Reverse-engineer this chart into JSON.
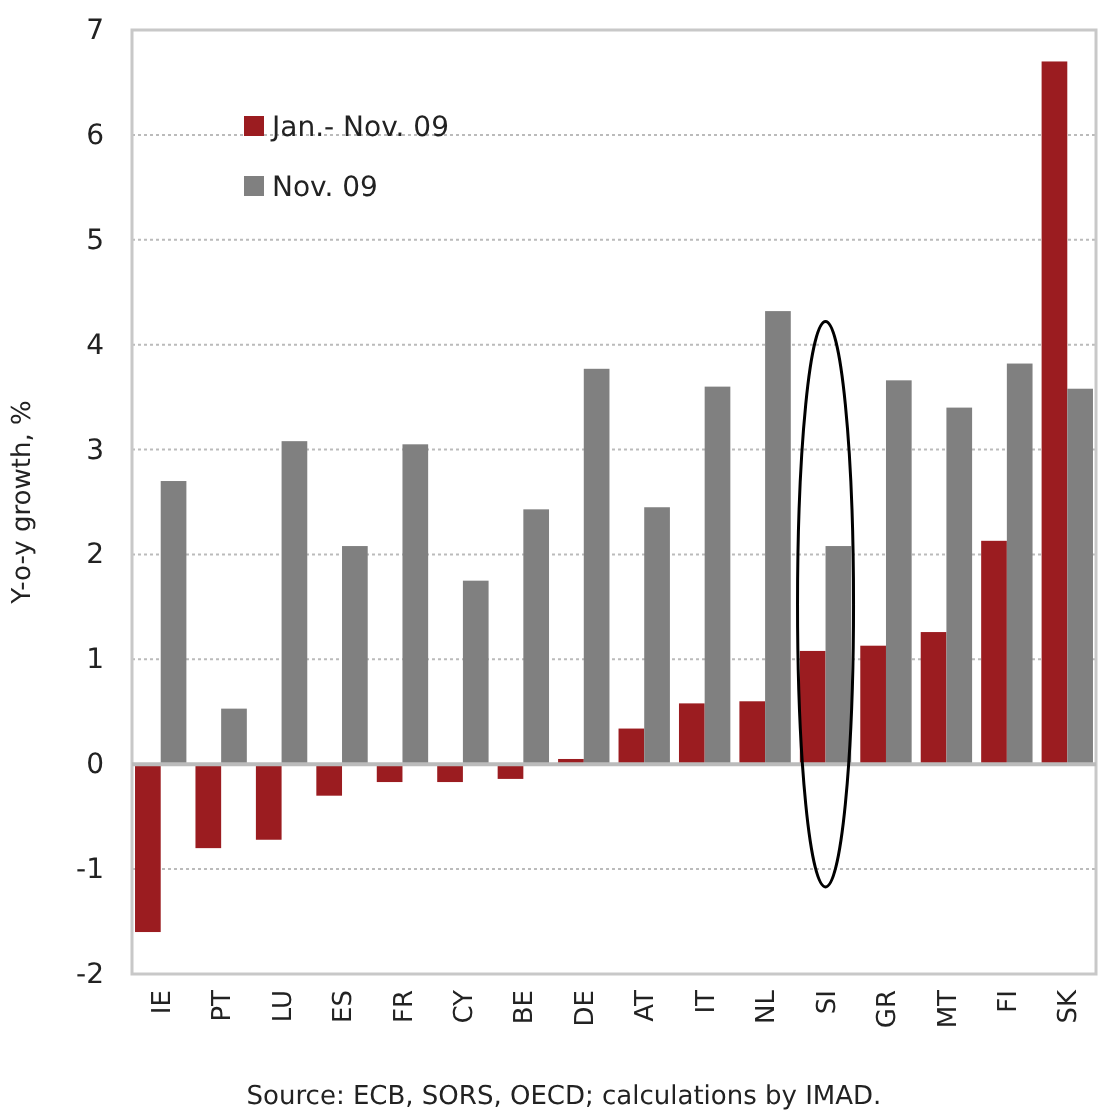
{
  "chart_data": {
    "type": "bar",
    "ylabel": "Y-o-y growth, %",
    "categories": [
      "IE",
      "PT",
      "LU",
      "ES",
      "FR",
      "CY",
      "BE",
      "DE",
      "AT",
      "IT",
      "NL",
      "SI",
      "GR",
      "MT",
      "FI",
      "SK"
    ],
    "series": [
      {
        "name": "Jan.- Nov. 09",
        "color": "#9b1c20",
        "values": [
          -1.6,
          -0.8,
          -0.72,
          -0.3,
          -0.17,
          -0.17,
          -0.14,
          0.05,
          0.34,
          0.58,
          0.6,
          1.08,
          1.13,
          1.26,
          2.13,
          6.7
        ]
      },
      {
        "name": "Nov. 09",
        "color": "#808080",
        "values": [
          2.7,
          0.53,
          3.08,
          2.08,
          3.05,
          1.75,
          2.43,
          3.77,
          2.45,
          3.6,
          4.32,
          2.08,
          3.66,
          3.4,
          3.82,
          3.58
        ]
      }
    ],
    "ylim": [
      -2,
      7
    ],
    "yticks": [
      -2,
      -1,
      0,
      1,
      2,
      3,
      4,
      5,
      6,
      7
    ],
    "grid": "y",
    "legend": "top left",
    "annotations": [
      "Source: ECB, SORS, OECD; calculations by IMAD."
    ]
  }
}
